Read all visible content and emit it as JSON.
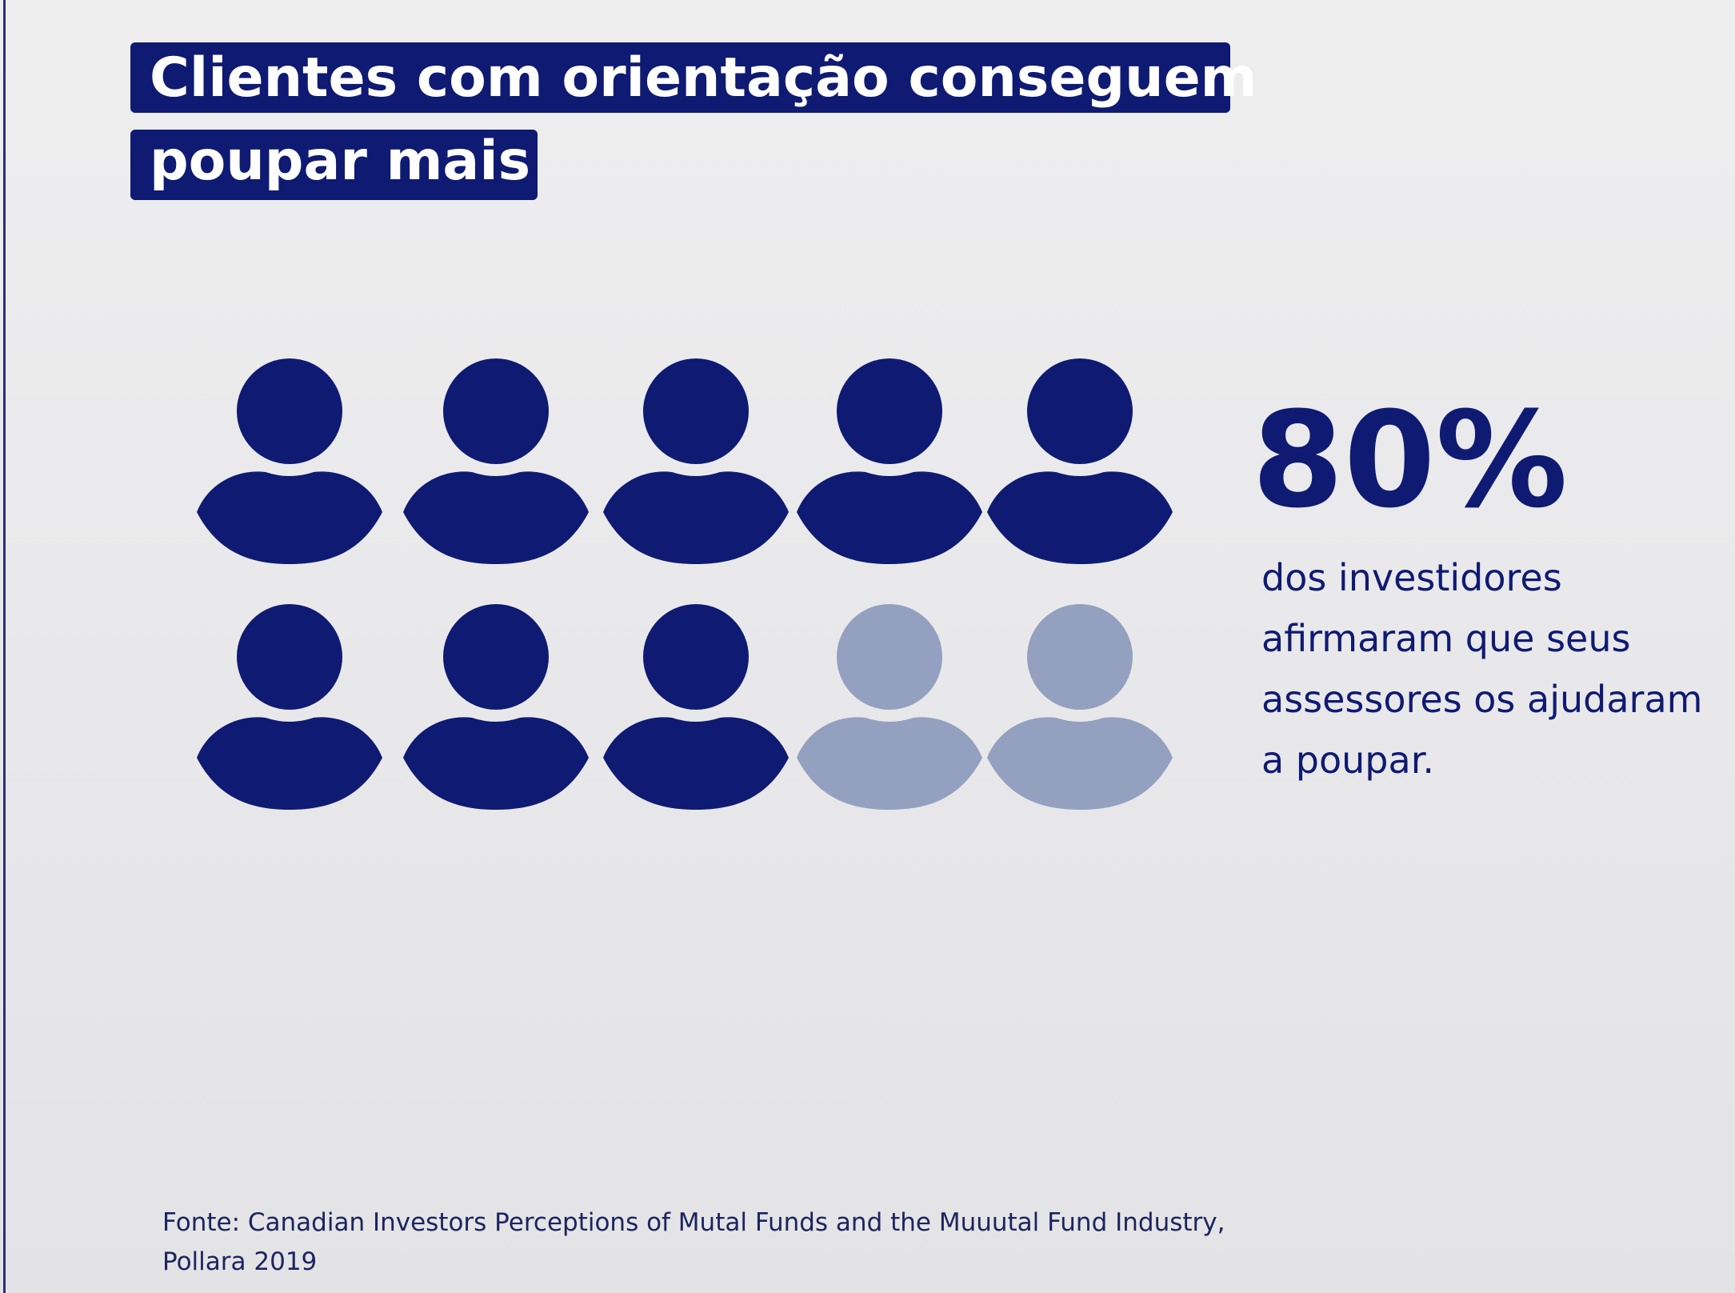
{
  "chart_data": {
    "type": "pictogram",
    "title": [
      "Clientes com orientação conseguem",
      "poupar mais"
    ],
    "values": [
      80
    ],
    "value_labels": [
      "80%"
    ],
    "color": "#0f1a73",
    "empty_color": "#94a0c0",
    "annotation": [
      "dos investidores",
      "afirmaram que seus",
      "assessores os ajudaram",
      "a poupar."
    ],
    "source": [
      "Fonte: Canadian Investors Perceptions of Mutal Funds and the Muuutal Fund Industry,",
      "Pollara 2019"
    ]
  }
}
